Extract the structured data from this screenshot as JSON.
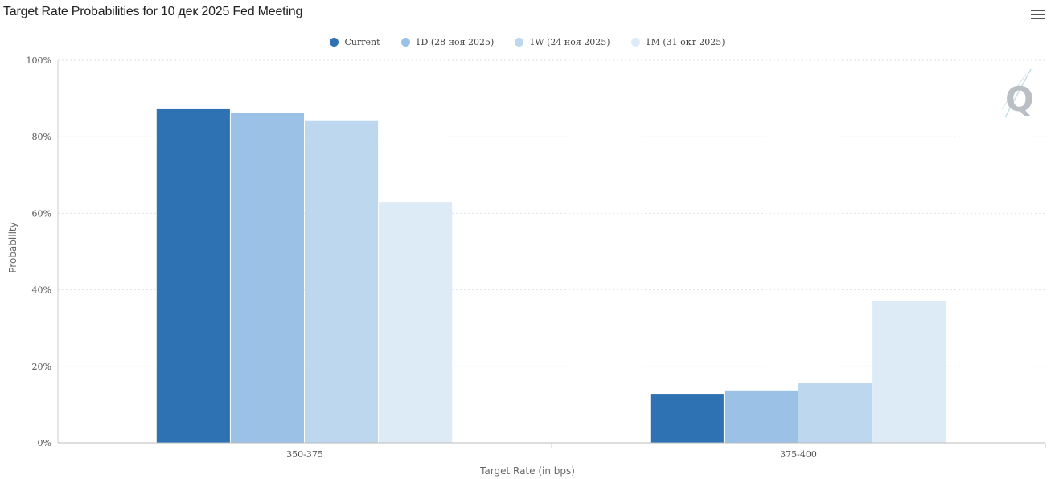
{
  "title": "Target Rate Probabilities for 10 дек 2025 Fed Meeting",
  "menu_icon": "hamburger-menu-icon",
  "watermark_icon": "quikstrike-q-logo-icon",
  "chart_data": {
    "type": "bar",
    "title": "Target Rate Probabilities for 10 дек 2025 Fed Meeting",
    "xlabel": "Target Rate (in bps)",
    "ylabel": "Probability",
    "categories": [
      "350-375",
      "375-400"
    ],
    "yticks": [
      "0%",
      "20%",
      "40%",
      "60%",
      "80%",
      "100%"
    ],
    "ylim": [
      0,
      100
    ],
    "grid": true,
    "legend_position": "top-center",
    "series": [
      {
        "name": "Current",
        "color": "#2e72b4",
        "values": [
          87.2,
          12.8
        ]
      },
      {
        "name": "1D (28 ноя 2025)",
        "color": "#9bc2e6",
        "values": [
          86.3,
          13.7
        ]
      },
      {
        "name": "1W (24 ноя 2025)",
        "color": "#bdd7ee",
        "values": [
          84.3,
          15.7
        ]
      },
      {
        "name": "1M (31 окт 2025)",
        "color": "#ddebf7",
        "values": [
          63.0,
          37.0
        ]
      }
    ]
  }
}
